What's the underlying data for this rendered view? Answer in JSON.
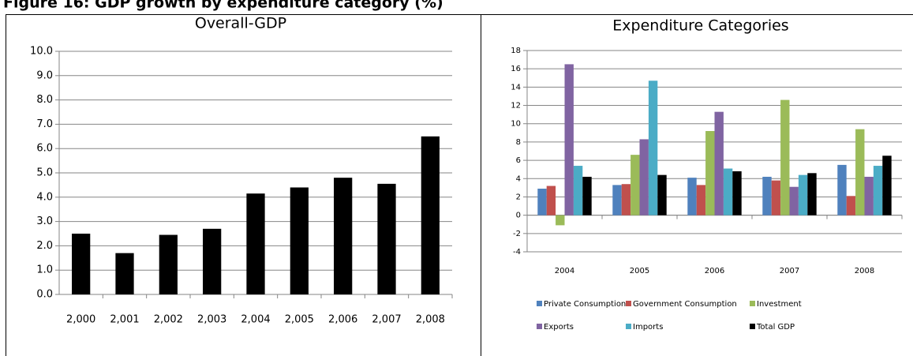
{
  "figure_title": "Figure 16: GDP growth by expenditure category (%)",
  "chart_data": [
    {
      "type": "bar",
      "title": "Overall-GDP",
      "categories": [
        "2,000",
        "2,001",
        "2,002",
        "2,003",
        "2,004",
        "2,005",
        "2,006",
        "2,007",
        "2,008"
      ],
      "values": [
        2.5,
        1.7,
        2.45,
        2.7,
        4.15,
        4.4,
        4.8,
        4.55,
        6.5
      ],
      "color": "#000000",
      "ylim": [
        0,
        10
      ],
      "yticks": [
        {
          "value": 0,
          "label": "0.0"
        },
        {
          "value": 1,
          "label": "1.0"
        },
        {
          "value": 2,
          "label": "2.0"
        },
        {
          "value": 3,
          "label": "3.0"
        },
        {
          "value": 4,
          "label": "4.0"
        },
        {
          "value": 5,
          "label": "5.0"
        },
        {
          "value": 6,
          "label": "6.0"
        },
        {
          "value": 7,
          "label": "7.0"
        },
        {
          "value": 8,
          "label": "8.0"
        },
        {
          "value": 9,
          "label": "9.0"
        },
        {
          "value": 10,
          "label": "10.0"
        }
      ],
      "grid": true
    },
    {
      "type": "bar",
      "title": "Expenditure Categories",
      "categories": [
        "2004",
        "2005",
        "2006",
        "2007",
        "2008"
      ],
      "series": [
        {
          "name": "Private Consumption",
          "color": "#4f81bd",
          "values": [
            2.9,
            3.3,
            4.1,
            4.2,
            5.5
          ]
        },
        {
          "name": "Government Consumption",
          "color": "#c0504d",
          "values": [
            3.2,
            3.4,
            3.3,
            3.8,
            2.1
          ]
        },
        {
          "name": "Investment",
          "color": "#9bbb59",
          "values": [
            -1.1,
            6.6,
            9.2,
            12.6,
            9.4
          ]
        },
        {
          "name": "Exports",
          "color": "#8064a2",
          "values": [
            16.5,
            8.3,
            11.3,
            3.1,
            4.2
          ]
        },
        {
          "name": "Imports",
          "color": "#4bacc6",
          "values": [
            5.4,
            14.7,
            5.1,
            4.4,
            5.4
          ]
        },
        {
          "name": "Total GDP",
          "color": "#000000",
          "values": [
            4.2,
            4.4,
            4.8,
            4.6,
            6.5
          ]
        }
      ],
      "ylim": [
        -4,
        18
      ],
      "yticks": [
        -4,
        -2,
        0,
        2,
        4,
        6,
        8,
        10,
        12,
        14,
        16,
        18
      ],
      "grid": true,
      "legend": "bottom"
    }
  ]
}
